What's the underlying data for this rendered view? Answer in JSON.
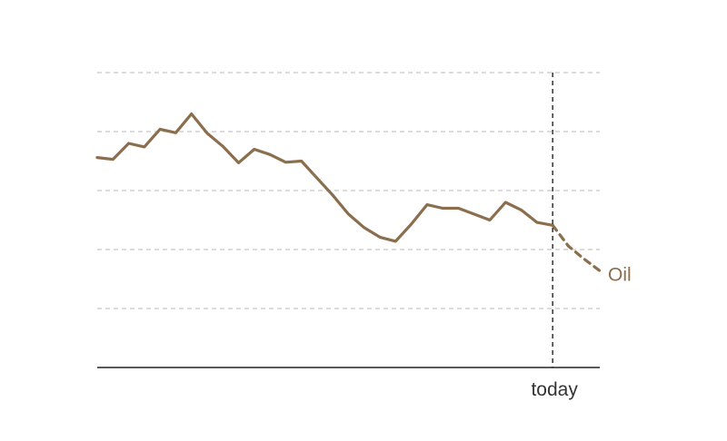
{
  "chart_data": {
    "type": "line",
    "title": "",
    "xlabel": "",
    "ylabel": "",
    "x_range": [
      0,
      32
    ],
    "ylim": [
      0,
      5
    ],
    "grid": "horizontal-dashed",
    "today_marker": {
      "x": 29,
      "label": "today"
    },
    "series": [
      {
        "name": "Oil",
        "color": "#8b6e4e",
        "x": [
          0,
          1,
          2,
          3,
          4,
          5,
          6,
          7,
          8,
          9,
          10,
          11,
          12,
          13,
          14,
          15,
          16,
          17,
          18,
          19,
          20,
          21,
          22,
          23,
          24,
          25,
          26,
          27,
          28,
          29
        ],
        "values": [
          3.56,
          3.53,
          3.8,
          3.74,
          4.04,
          3.98,
          4.3,
          3.97,
          3.75,
          3.47,
          3.7,
          3.61,
          3.48,
          3.5,
          3.21,
          2.92,
          2.6,
          2.37,
          2.21,
          2.14,
          2.43,
          2.76,
          2.7,
          2.7,
          2.6,
          2.5,
          2.8,
          2.67,
          2.46,
          2.41
        ]
      }
    ],
    "forecast": {
      "series": "Oil",
      "x": [
        29,
        30,
        31,
        32
      ],
      "values": [
        2.41,
        2.06,
        1.84,
        1.64
      ]
    }
  }
}
